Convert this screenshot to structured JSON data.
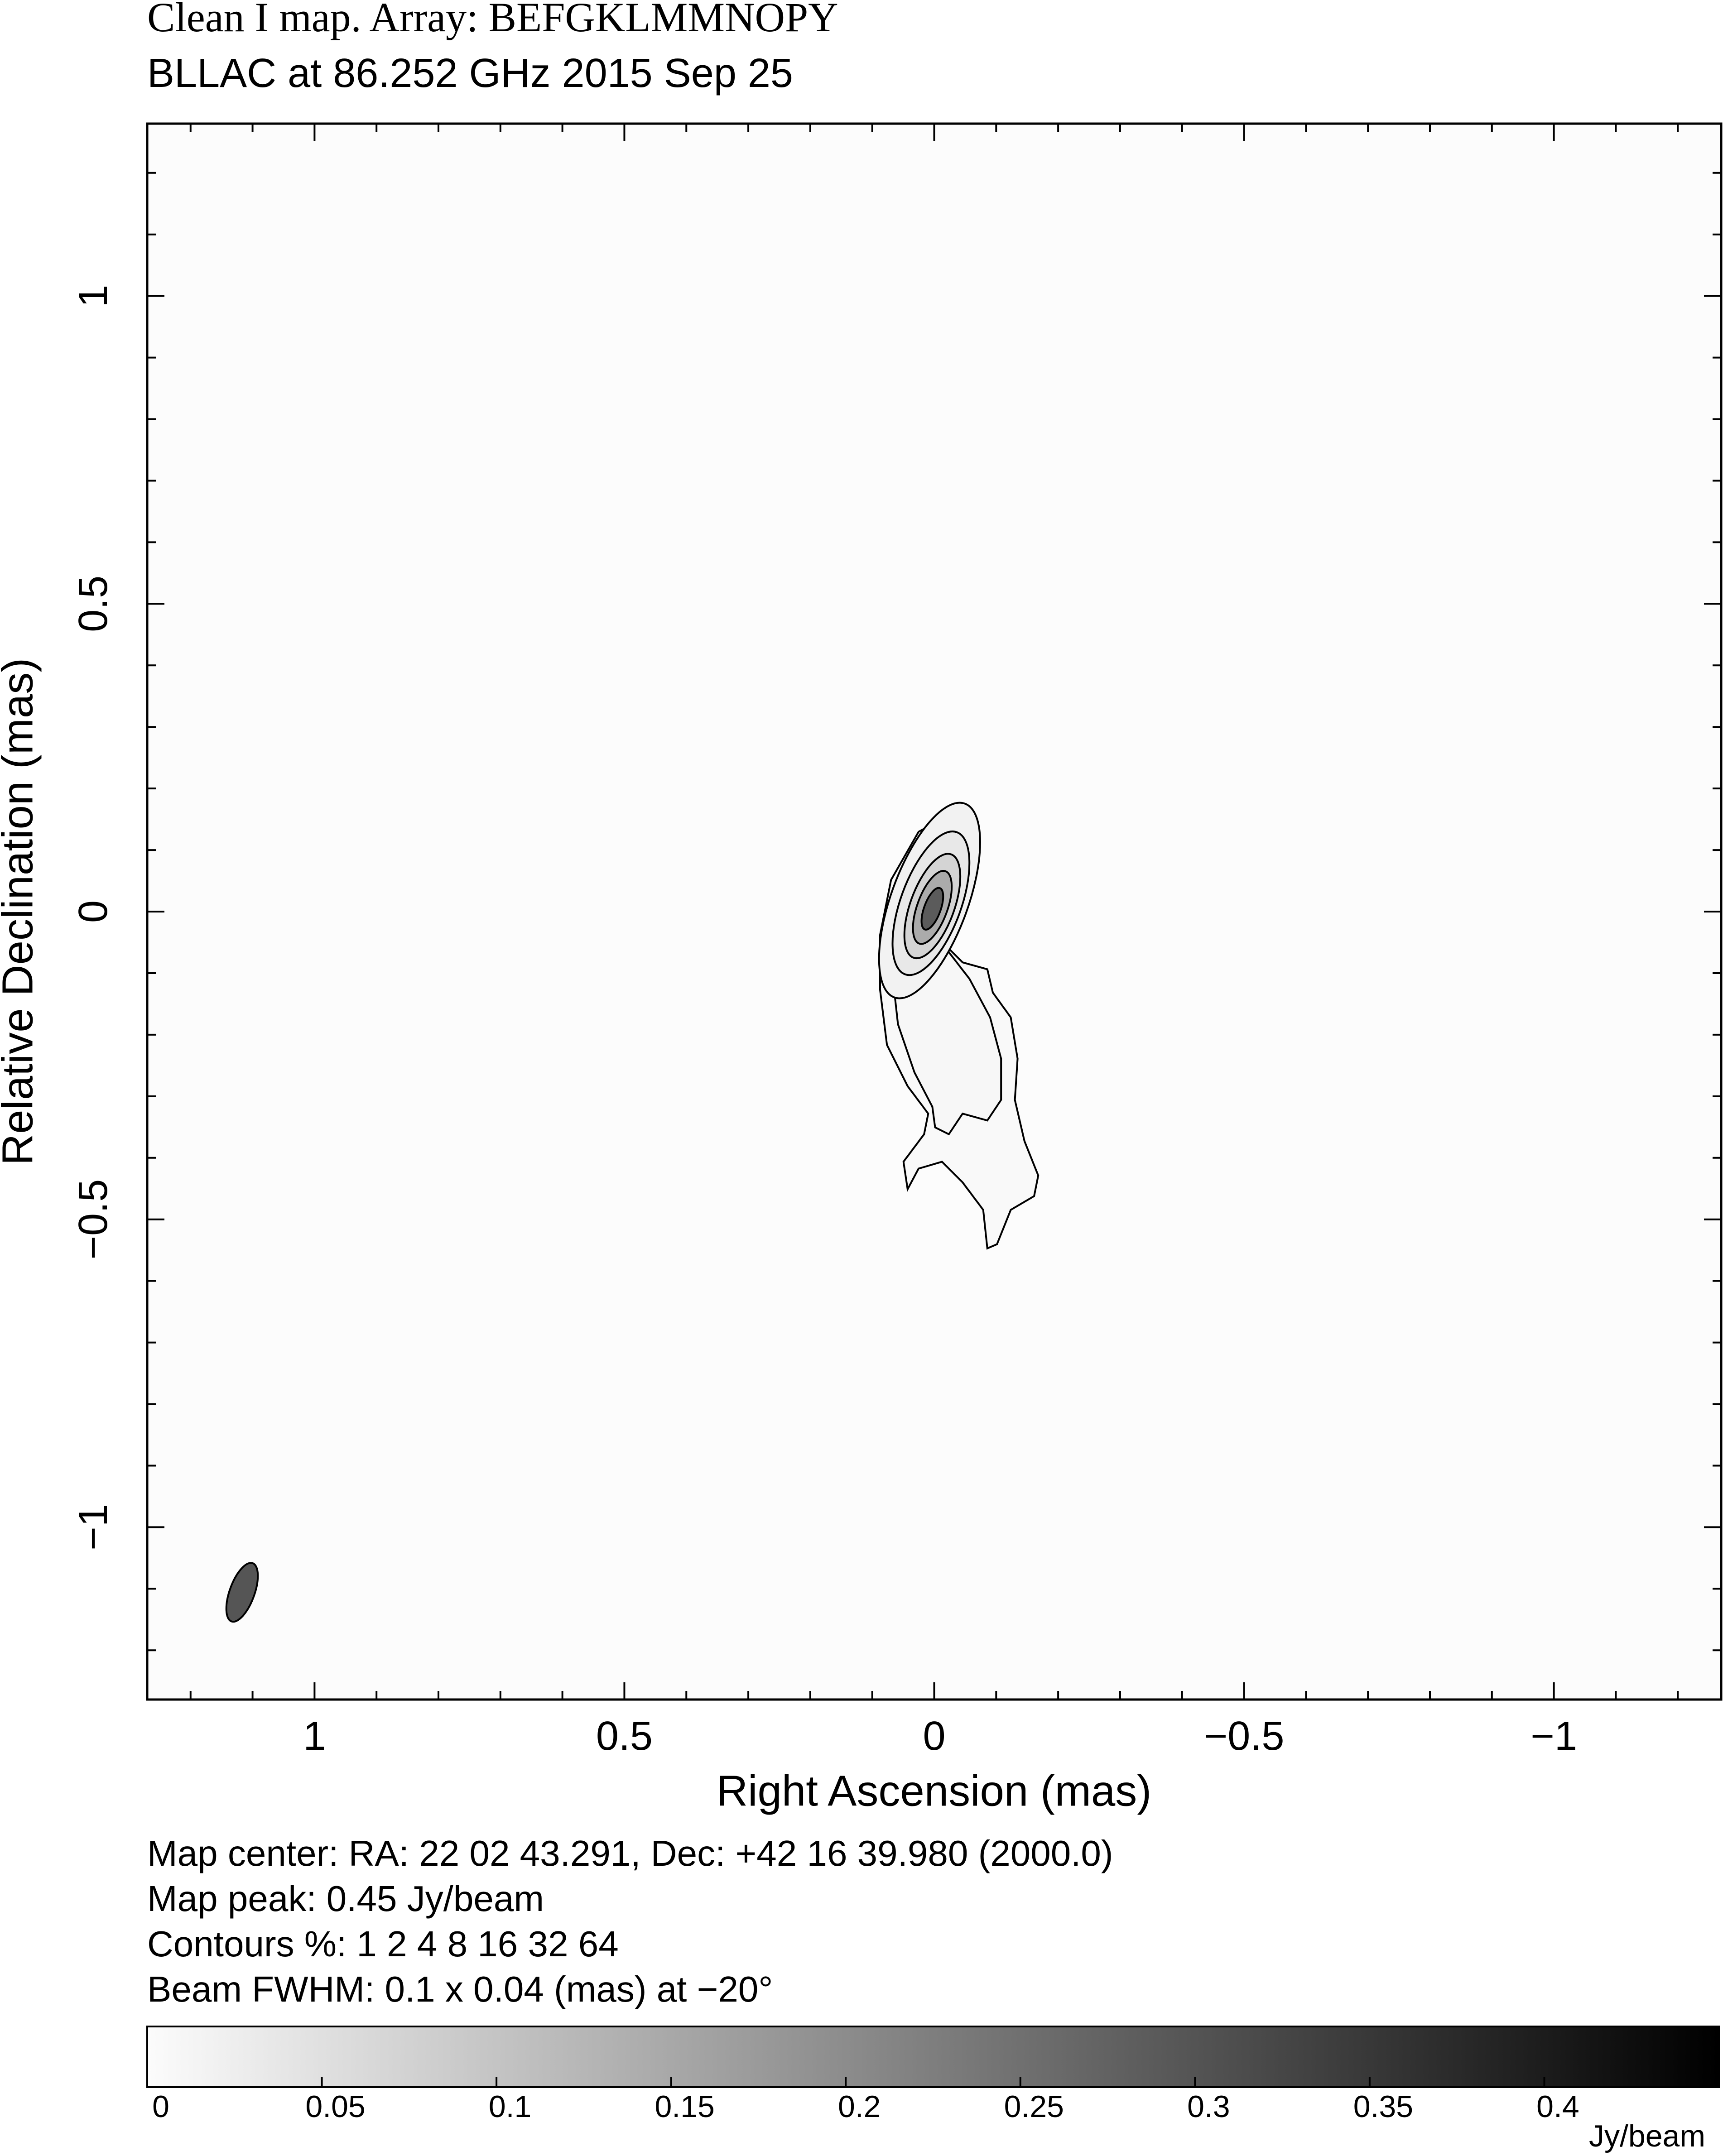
{
  "chart_data": {
    "type": "contour",
    "title": "Clean I map.  Array:  BEFGKLMMNOPY",
    "subtitle": "BLLAC at 86.252 GHz 2015 Sep 25",
    "xlabel": "Right Ascension  (mas)",
    "ylabel": "Relative Declination  (mas)",
    "xlim": [
      1.27,
      -1.27
    ],
    "ylim": [
      -1.28,
      1.28
    ],
    "xticks": [
      1,
      0.5,
      0,
      {
        "value": -0.5,
        "label": "−0.5"
      },
      {
        "value": -1,
        "label": "−1"
      }
    ],
    "yticks": [
      {
        "value": -1,
        "label": "−1"
      },
      {
        "value": -0.5,
        "label": "−0.5"
      },
      0,
      0.5,
      1
    ],
    "xminorticks": [
      1.2,
      1.1,
      0.9,
      0.8,
      0.7,
      0.6,
      0.4,
      0.3,
      0.2,
      0.1,
      -0.1,
      -0.2,
      -0.3,
      -0.4,
      -0.6,
      -0.7,
      -0.8,
      -0.9,
      -1.1,
      -1.2
    ],
    "yminorticks": [
      -1.2,
      -1.1,
      -0.9,
      -0.8,
      -0.7,
      -0.6,
      -0.4,
      -0.3,
      -0.2,
      -0.1,
      0.1,
      0.2,
      0.3,
      0.4,
      0.6,
      0.7,
      0.8,
      0.9,
      1.1,
      1.2
    ],
    "peak": 0.45,
    "contour_levels": [
      1,
      2,
      4,
      8,
      16,
      32,
      64
    ],
    "beam": {
      "major": 0.1,
      "minor": 0.04,
      "pa": -20
    },
    "notes": [
      "Map center:  RA: 22 02 43.291,  Dec: +42 16 39.980 (2000.0)",
      "Map peak: 0.45 Jy/beam",
      "Contours %: 1 2 4 8 16 32 64",
      "Beam FWHM: 0.1 x 0.04 (mas) at −20°"
    ],
    "colorbar": {
      "lim": [
        0,
        0.45
      ],
      "ticks": [
        0,
        0.05,
        0.1,
        0.15,
        0.2,
        0.25,
        0.3,
        0.35,
        0.4
      ],
      "label": "Jy/beam"
    }
  }
}
